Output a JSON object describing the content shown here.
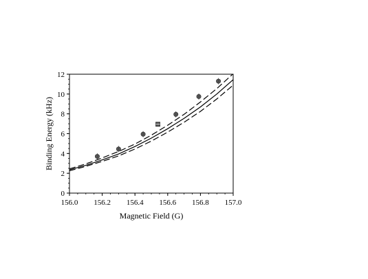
{
  "chart_data": {
    "type": "scatter",
    "xlabel": "Magnetic Field (G)",
    "ylabel": "Binding Energy (kHz)",
    "xlim": [
      156.0,
      157.0
    ],
    "ylim": [
      0,
      12
    ],
    "x_ticks": [
      "156.0",
      "156.2",
      "156.4",
      "156.6",
      "156.8",
      "157.0"
    ],
    "y_ticks": [
      "0",
      "2",
      "4",
      "6",
      "8",
      "10",
      "12"
    ],
    "grid": false,
    "series": [
      {
        "style": "points",
        "marker": "circle",
        "color": "#555555",
        "x": [
          156.17,
          156.3,
          156.45,
          156.65,
          156.79,
          156.91
        ],
        "y": [
          3.7,
          4.45,
          5.95,
          7.95,
          9.75,
          11.3
        ]
      },
      {
        "style": "points",
        "marker": "square",
        "color": "#555555",
        "x": [
          156.54
        ],
        "y": [
          6.95
        ]
      },
      {
        "style": "solid",
        "color": "#000000",
        "x": [
          156.0,
          156.1,
          156.2,
          156.3,
          156.4,
          156.5,
          156.6,
          156.7,
          156.8,
          156.9,
          157.0
        ],
        "y": [
          2.35,
          2.8,
          3.35,
          3.95,
          4.7,
          5.55,
          6.5,
          7.55,
          8.7,
          10.0,
          11.45
        ]
      },
      {
        "style": "dashed",
        "color": "#000000",
        "x": [
          156.0,
          156.1,
          156.2,
          156.3,
          156.4,
          156.5,
          156.6,
          156.7,
          156.8,
          156.9,
          157.0
        ],
        "y": [
          2.45,
          2.95,
          3.55,
          4.2,
          4.95,
          5.85,
          6.85,
          7.95,
          9.2,
          10.55,
          12.05
        ]
      },
      {
        "style": "dashed",
        "color": "#000000",
        "x": [
          156.0,
          156.1,
          156.2,
          156.3,
          156.4,
          156.5,
          156.6,
          156.7,
          156.8,
          156.9,
          157.0
        ],
        "y": [
          2.25,
          2.7,
          3.2,
          3.75,
          4.45,
          5.25,
          6.15,
          7.15,
          8.25,
          9.5,
          10.9
        ]
      }
    ]
  }
}
